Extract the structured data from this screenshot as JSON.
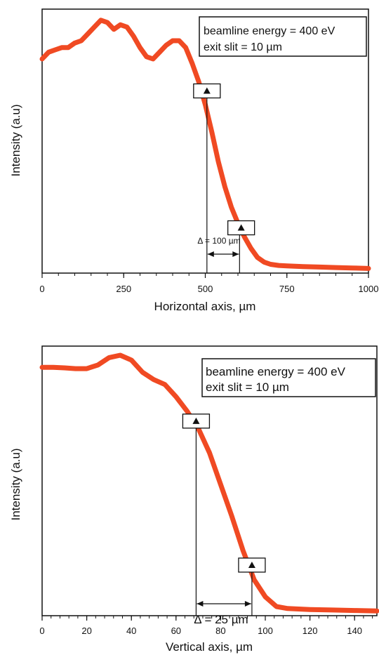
{
  "chart_data": [
    {
      "type": "line",
      "xlabel": "Horizontal axis, µm",
      "ylabel": "Intensity (a.u)",
      "xlim": [
        0,
        1000
      ],
      "x_ticks": [
        "0",
        "250",
        "500",
        "750",
        "1000"
      ],
      "y_ticks": [],
      "grid": false,
      "line_color": "#f04a23",
      "legend": [
        "beamline energy = 400 eV",
        "exit slit = 10 µm"
      ],
      "legend_position": "top-right",
      "annotation": {
        "text": "Δ = 100 µm",
        "x_from": 505,
        "x_to": 605
      },
      "markers": [
        {
          "x": 505,
          "y": 0.78
        },
        {
          "x": 610,
          "y": 0.18
        }
      ],
      "x": [
        0,
        20,
        40,
        60,
        80,
        100,
        120,
        140,
        160,
        180,
        200,
        220,
        240,
        260,
        280,
        300,
        320,
        340,
        360,
        380,
        400,
        420,
        440,
        460,
        480,
        500,
        520,
        540,
        560,
        580,
        600,
        620,
        640,
        660,
        680,
        700,
        725,
        750,
        800,
        850,
        900,
        950,
        1000
      ],
      "values": [
        0.92,
        0.95,
        0.96,
        0.97,
        0.97,
        0.99,
        1.0,
        1.03,
        1.06,
        1.09,
        1.08,
        1.05,
        1.07,
        1.06,
        1.02,
        0.97,
        0.93,
        0.92,
        0.95,
        0.98,
        1.0,
        1.0,
        0.97,
        0.9,
        0.82,
        0.72,
        0.6,
        0.47,
        0.36,
        0.27,
        0.2,
        0.14,
        0.09,
        0.05,
        0.03,
        0.02,
        0.015,
        0.013,
        0.01,
        0.008,
        0.006,
        0.004,
        0.002
      ]
    },
    {
      "type": "line",
      "xlabel": "Vertical axis, µm",
      "ylabel": "Intensity (a.u)",
      "xlim": [
        0,
        150
      ],
      "x_ticks": [
        "0",
        "20",
        "40",
        "60",
        "80",
        "100",
        "120",
        "140"
      ],
      "y_ticks": [],
      "grid": false,
      "line_color": "#f04a23",
      "legend": [
        "beamline energy = 400 eV",
        "exit slit = 10 µm"
      ],
      "legend_position": "top-right",
      "annotation": {
        "text": "Δ = 25 µm",
        "x_from": 69,
        "x_to": 94
      },
      "markers": [
        {
          "x": 69,
          "y": 0.78
        },
        {
          "x": 94,
          "y": 0.19
        }
      ],
      "x": [
        0,
        5,
        10,
        15,
        20,
        25,
        30,
        35,
        40,
        45,
        50,
        55,
        60,
        65,
        70,
        75,
        80,
        85,
        90,
        95,
        100,
        105,
        110,
        120,
        130,
        140,
        150
      ],
      "values": [
        1.0,
        1.0,
        0.998,
        0.995,
        0.995,
        1.01,
        1.04,
        1.05,
        1.03,
        0.98,
        0.95,
        0.93,
        0.88,
        0.82,
        0.75,
        0.65,
        0.52,
        0.39,
        0.25,
        0.13,
        0.06,
        0.02,
        0.012,
        0.008,
        0.006,
        0.004,
        0.002
      ]
    }
  ]
}
